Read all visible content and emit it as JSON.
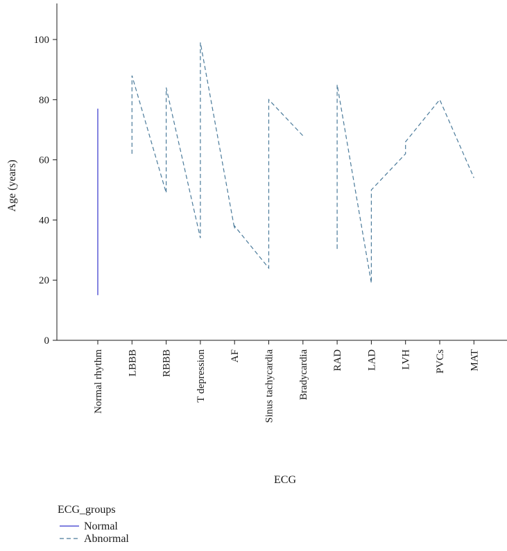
{
  "chart_data": {
    "type": "line",
    "xlabel": "ECG",
    "ylabel": "Age (years)",
    "ylim": [
      0,
      110
    ],
    "yticks": [
      0,
      20,
      40,
      60,
      80,
      100
    ],
    "categories": [
      "Normal rhythm",
      "LBBB",
      "RBBB",
      "T depression",
      "AF",
      "Sinus tachycardia",
      "Bradycardia",
      "RAD",
      "LAD",
      "LVH",
      "PVCs",
      "MAT"
    ],
    "grid": false,
    "legend": {
      "title": "ECG_groups",
      "placement": "bottom-left"
    },
    "series": [
      {
        "name": "Normal",
        "color": "#3333cc",
        "dash": "solid",
        "points": [
          {
            "x": "Normal rhythm",
            "y": 15
          },
          {
            "x": "Normal rhythm",
            "y": 77
          }
        ]
      },
      {
        "name": "Abnormal",
        "color": "#4a7a9a",
        "dash": "dashed",
        "points": [
          {
            "x": "LBBB",
            "y": 62
          },
          {
            "x": "LBBB",
            "y": 88
          },
          {
            "x": "RBBB",
            "y": 49
          },
          {
            "x": "RBBB",
            "y": 84
          },
          {
            "x": "T depression",
            "y": 34
          },
          {
            "x": "T depression",
            "y": 99
          },
          {
            "x": "AF",
            "y": 37
          },
          {
            "x": "AF",
            "y": 38
          },
          {
            "x": "Sinus tachycardia",
            "y": 24
          },
          {
            "x": "Sinus tachycardia",
            "y": 80
          },
          {
            "x": "Bradycardia",
            "y": 68
          },
          {
            "x": "RAD",
            "y": 41,
            "break_before": true
          },
          {
            "x": "RAD",
            "y": 30
          },
          {
            "x": "RAD",
            "y": 85
          },
          {
            "x": "LAD",
            "y": 19
          },
          {
            "x": "LAD",
            "y": 50
          },
          {
            "x": "LVH",
            "y": 62
          },
          {
            "x": "LVH",
            "y": 66
          },
          {
            "x": "PVCs",
            "y": 80
          },
          {
            "x": "MAT",
            "y": 54
          }
        ]
      }
    ]
  }
}
